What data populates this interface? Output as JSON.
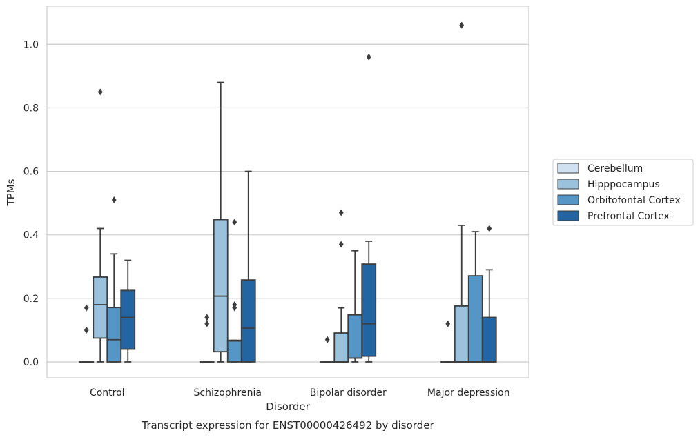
{
  "chart_data": {
    "type": "box",
    "title": "",
    "caption": "Transcript expression for ENST00000426492 by disorder",
    "xlabel": "Disorder",
    "ylabel": "TPMs",
    "ylim": [
      -0.05,
      1.12
    ],
    "yticks": [
      "0.0",
      "0.2",
      "0.4",
      "0.6",
      "0.8",
      "1.0"
    ],
    "grid": true,
    "legend_position": "center-right outside",
    "categories": [
      "Control",
      "Schizophrenia",
      "Bipolar disorder",
      "Major depression"
    ],
    "series": [
      {
        "name": "Cerebellum",
        "color": "#d0e2f2",
        "boxes": [
          {
            "whisker_low": 0,
            "q1": 0,
            "median": 0,
            "q3": 0,
            "whisker_high": 0,
            "outliers": [
              0.1,
              0.17
            ]
          },
          {
            "whisker_low": 0,
            "q1": 0,
            "median": 0,
            "q3": 0,
            "whisker_high": 0,
            "outliers": [
              0.12,
              0.14
            ]
          },
          {
            "whisker_low": 0,
            "q1": 0,
            "median": 0,
            "q3": 0,
            "whisker_high": 0,
            "outliers": [
              0.07
            ]
          },
          {
            "whisker_low": 0,
            "q1": 0,
            "median": 0,
            "q3": 0,
            "whisker_high": 0,
            "outliers": [
              0.12
            ]
          }
        ]
      },
      {
        "name": "Hipppocampus",
        "color": "#9ac2dc",
        "boxes": [
          {
            "whisker_low": 0,
            "q1": 0.075,
            "median": 0.18,
            "q3": 0.267,
            "whisker_high": 0.42,
            "outliers": [
              0.85
            ]
          },
          {
            "whisker_low": 0,
            "q1": 0.032,
            "median": 0.207,
            "q3": 0.448,
            "whisker_high": 0.88,
            "outliers": []
          },
          {
            "whisker_low": 0,
            "q1": 0,
            "median": 0,
            "q3": 0.091,
            "whisker_high": 0.17,
            "outliers": [
              0.37,
              0.47
            ]
          },
          {
            "whisker_low": 0,
            "q1": 0,
            "median": 0,
            "q3": 0.176,
            "whisker_high": 0.43,
            "outliers": [
              1.06
            ]
          }
        ]
      },
      {
        "name": "Orbitofontal Cortex",
        "color": "#5596c7",
        "boxes": [
          {
            "whisker_low": 0,
            "q1": 0,
            "median": 0.07,
            "q3": 0.171,
            "whisker_high": 0.34,
            "outliers": [
              0.51
            ]
          },
          {
            "whisker_low": 0,
            "q1": 0,
            "median": 0.066,
            "q3": 0.068,
            "whisker_high": 0.068,
            "outliers": [
              0.17,
              0.18,
              0.44
            ]
          },
          {
            "whisker_low": 0,
            "q1": 0.012,
            "median": 0.012,
            "q3": 0.148,
            "whisker_high": 0.35,
            "outliers": []
          },
          {
            "whisker_low": 0,
            "q1": 0,
            "median": 0,
            "q3": 0.271,
            "whisker_high": 0.41,
            "outliers": []
          }
        ]
      },
      {
        "name": "Prefrontal Cortex",
        "color": "#2364a2",
        "boxes": [
          {
            "whisker_low": 0,
            "q1": 0.04,
            "median": 0.14,
            "q3": 0.225,
            "whisker_high": 0.32,
            "outliers": []
          },
          {
            "whisker_low": 0,
            "q1": 0,
            "median": 0.106,
            "q3": 0.258,
            "whisker_high": 0.6,
            "outliers": []
          },
          {
            "whisker_low": 0,
            "q1": 0.018,
            "median": 0.12,
            "q3": 0.308,
            "whisker_high": 0.38,
            "outliers": [
              0.96
            ]
          },
          {
            "whisker_low": 0,
            "q1": 0,
            "median": 0,
            "q3": 0.14,
            "whisker_high": 0.29,
            "outliers": [
              0.42
            ]
          }
        ]
      }
    ]
  }
}
